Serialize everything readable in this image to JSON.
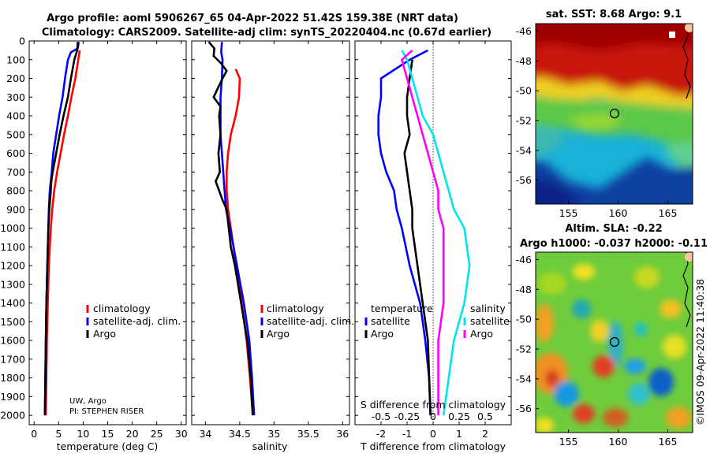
{
  "title": {
    "line1": "Argo profile: aoml 5906267_65 04-Apr-2022 51.42S 159.38E (NRT data)",
    "line2": "Climatology: CARS2009. Satellite-adj clim: synTS_20220404.nc (0.67d earlier)"
  },
  "credits": {
    "line1": "UW, Argo",
    "line2": "PI: STEPHEN RISER"
  },
  "watermark": "©IMOS 09-Apr-2022 11:40:38",
  "colors": {
    "climatology": "#ff0000",
    "satellite": "#0000ff",
    "argo": "#000000",
    "argo_salinity": "#ff00ff",
    "satellite_salinity": "#00e5ee"
  },
  "depth_axis": {
    "ticks": [
      0,
      100,
      200,
      300,
      400,
      500,
      600,
      700,
      800,
      900,
      1000,
      1100,
      1200,
      1300,
      1400,
      1500,
      1600,
      1700,
      1800,
      1900,
      2000
    ],
    "range": [
      0,
      2050
    ]
  },
  "chart_data": [
    {
      "type": "line",
      "title": "",
      "xlabel": "temperature (deg C)",
      "ylabel": "depth",
      "xlim": [
        -1,
        31
      ],
      "xticks": [
        0,
        5,
        10,
        15,
        20,
        25,
        30
      ],
      "legend": {
        "position": "mid-right",
        "labels": [
          "climatology",
          "satellite-adj. clim.",
          "Argo"
        ]
      },
      "series": [
        {
          "name": "climatology",
          "color": "#ff0000",
          "depth": [
            50,
            100,
            200,
            300,
            400,
            500,
            600,
            700,
            800,
            900,
            1000,
            1200,
            1400,
            1600,
            1800,
            2000
          ],
          "values": [
            9.3,
            9.0,
            8.4,
            7.6,
            6.9,
            6.1,
            5.4,
            4.7,
            4.1,
            3.7,
            3.4,
            3.0,
            2.8,
            2.6,
            2.5,
            2.4
          ]
        },
        {
          "name": "satellite-adj. clim.",
          "color": "#0000ff",
          "depth": [
            5,
            40,
            60,
            100,
            200,
            300,
            400,
            500,
            600,
            700,
            800,
            900,
            1000,
            1200,
            1400,
            1600,
            1800,
            2000
          ],
          "values": [
            9.1,
            8.9,
            7.5,
            6.9,
            6.3,
            5.8,
            5.1,
            4.5,
            3.9,
            3.6,
            3.2,
            3.0,
            2.9,
            2.7,
            2.5,
            2.4,
            2.3,
            2.2
          ]
        },
        {
          "name": "Argo",
          "color": "#000000",
          "depth": [
            5,
            50,
            100,
            200,
            300,
            400,
            500,
            600,
            700,
            750,
            800,
            900,
            1000,
            1200,
            1400,
            1600,
            1800,
            2000
          ],
          "values": [
            8.9,
            8.8,
            8.2,
            7.5,
            6.9,
            6.0,
            5.2,
            4.5,
            3.8,
            3.5,
            3.4,
            3.1,
            2.9,
            2.7,
            2.5,
            2.4,
            2.3,
            2.2
          ]
        }
      ]
    },
    {
      "type": "line",
      "title": "",
      "xlabel": "salinity",
      "ylabel": "",
      "xlim": [
        33.8,
        36.1
      ],
      "xticks": [
        34,
        34.5,
        35,
        35.5,
        36
      ],
      "legend": {
        "position": "mid-right",
        "labels": [
          "climatology",
          "satellite-adj. clim.",
          "Argo"
        ]
      },
      "series": [
        {
          "name": "climatology",
          "color": "#ff0000",
          "depth": [
            150,
            200,
            300,
            400,
            500,
            600,
            700,
            800,
            900,
            1000,
            1200,
            1400,
            1600,
            1800,
            2000
          ],
          "values": [
            34.44,
            34.5,
            34.49,
            34.44,
            34.37,
            34.33,
            34.31,
            34.31,
            34.33,
            34.37,
            34.45,
            34.53,
            34.6,
            34.65,
            34.69
          ]
        },
        {
          "name": "satellite-adj. clim.",
          "color": "#0000ff",
          "depth": [
            5,
            60,
            100,
            200,
            300,
            400,
            500,
            600,
            700,
            800,
            900,
            1000,
            1200,
            1400,
            1600,
            1800,
            2000
          ],
          "values": [
            34.24,
            34.23,
            34.25,
            34.24,
            34.22,
            34.22,
            34.22,
            34.24,
            34.26,
            34.28,
            34.3,
            34.36,
            34.46,
            34.56,
            34.64,
            34.68,
            34.71
          ]
        },
        {
          "name": "Argo",
          "color": "#000000",
          "depth": [
            5,
            40,
            80,
            120,
            160,
            200,
            300,
            350,
            400,
            500,
            600,
            700,
            750,
            800,
            850,
            900,
            1000,
            1100,
            1200,
            1400,
            1600,
            1800,
            2000
          ],
          "values": [
            34.05,
            34.13,
            34.12,
            34.23,
            34.31,
            34.25,
            34.12,
            34.22,
            34.2,
            34.22,
            34.19,
            34.21,
            34.15,
            34.2,
            34.25,
            34.31,
            34.34,
            34.37,
            34.43,
            34.52,
            34.61,
            34.66,
            34.69
          ]
        }
      ]
    },
    {
      "type": "line",
      "title": "",
      "xlabel": "T difference from climatology",
      "ylabel": "",
      "xlim": [
        -3,
        3
      ],
      "xticks": [
        -2,
        -1,
        0,
        1,
        2
      ],
      "top_axis": {
        "label": "S difference from climatology",
        "ticks": [
          "-0.5",
          "-0.25",
          "0",
          "0.25",
          "0.5"
        ]
      },
      "legend": {
        "position": "bottom",
        "temperature_header": "temperature",
        "salinity_header": "salinity",
        "labels": [
          "satellite",
          "Argo",
          "satellite",
          "Argo"
        ]
      },
      "series": [
        {
          "name": "temperature satellite",
          "color": "#0000ff",
          "depth": [
            50,
            100,
            200,
            300,
            400,
            500,
            600,
            700,
            800,
            900,
            1000,
            1200,
            1400,
            1600,
            1800,
            2000
          ],
          "values": [
            -0.2,
            -0.9,
            -2.0,
            -2.0,
            -2.1,
            -2.1,
            -2.0,
            -1.8,
            -1.5,
            -1.4,
            -1.2,
            -0.9,
            -0.5,
            -0.3,
            -0.15,
            -0.1
          ]
        },
        {
          "name": "temperature Argo",
          "color": "#000000",
          "depth": [
            100,
            200,
            300,
            400,
            500,
            600,
            700,
            800,
            900,
            1000,
            1200,
            1400,
            1600,
            1800,
            2000
          ],
          "values": [
            -0.8,
            -0.9,
            -1.0,
            -1.0,
            -0.9,
            -1.1,
            -1.0,
            -0.9,
            -0.8,
            -0.8,
            -0.6,
            -0.4,
            -0.2,
            -0.15,
            -0.1
          ]
        },
        {
          "name": "salinity satellite",
          "color": "#00e5ee",
          "depth": [
            50,
            100,
            200,
            300,
            400,
            500,
            600,
            700,
            800,
            900,
            1000,
            1200,
            1400,
            1600,
            1800,
            2000
          ],
          "values": [
            -0.3,
            -0.25,
            -0.2,
            -0.15,
            -0.1,
            0.0,
            0.05,
            0.1,
            0.15,
            0.2,
            0.3,
            0.35,
            0.3,
            0.2,
            0.15,
            0.1
          ]
        },
        {
          "name": "salinity Argo",
          "color": "#ff00ff",
          "depth": [
            50,
            100,
            200,
            300,
            400,
            500,
            600,
            700,
            800,
            900,
            1000,
            1200,
            1400,
            1600,
            1800,
            2000
          ],
          "values": [
            -0.2,
            -0.3,
            -0.25,
            -0.2,
            -0.15,
            -0.1,
            -0.05,
            0.0,
            0.05,
            0.05,
            0.1,
            0.1,
            0.1,
            0.05,
            0.05,
            0.05
          ]
        }
      ]
    }
  ],
  "maps": [
    {
      "title": "sat. SST: 8.68 Argo: 9.1",
      "xticks": [
        155,
        160,
        165
      ],
      "yticks": [
        -46,
        -48,
        -50,
        -52,
        -54,
        -56
      ]
    },
    {
      "title_line1": "Altim. SLA: -0.22",
      "title_line2": "Argo h1000: -0.037 h2000: -0.11",
      "xticks": [
        155,
        160,
        165
      ],
      "yticks": [
        -46,
        -48,
        -50,
        -52,
        -54,
        -56
      ]
    }
  ]
}
